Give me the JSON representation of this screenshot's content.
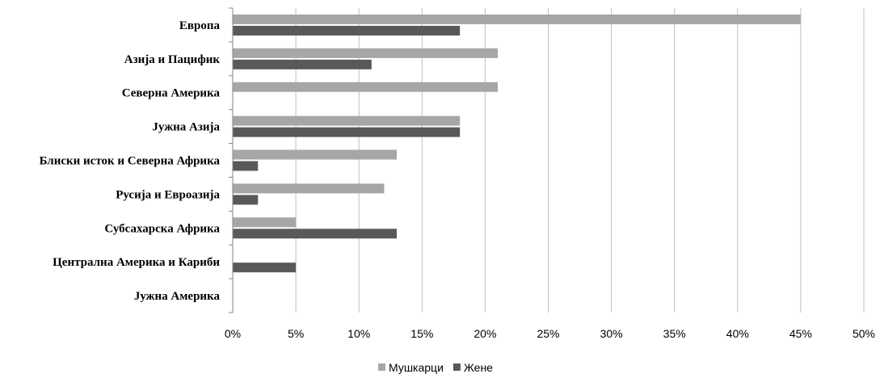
{
  "chart_data": {
    "type": "bar",
    "orientation": "horizontal",
    "categories": [
      "Европа",
      "Азија и Пацифик",
      "Северна Америка",
      "Јужна Азија",
      "Блиски исток и Северна Африка",
      "Русија и Евроазија",
      "Субсахарска Африка",
      "Централна Америка и Кариби",
      "Јужна Америка"
    ],
    "series": [
      {
        "name": "Мушкарци",
        "color": "#a6a6a6",
        "values": [
          45,
          21,
          21,
          18,
          13,
          12,
          5,
          0,
          0
        ]
      },
      {
        "name": "Жене",
        "color": "#595959",
        "values": [
          18,
          11,
          0,
          18,
          2,
          2,
          13,
          5,
          0
        ]
      }
    ],
    "xlim": [
      0,
      50
    ],
    "xticks": [
      0,
      5,
      10,
      15,
      20,
      25,
      30,
      35,
      40,
      45,
      50
    ],
    "tick_suffix": "%",
    "grid": true,
    "legend_position": "bottom"
  }
}
